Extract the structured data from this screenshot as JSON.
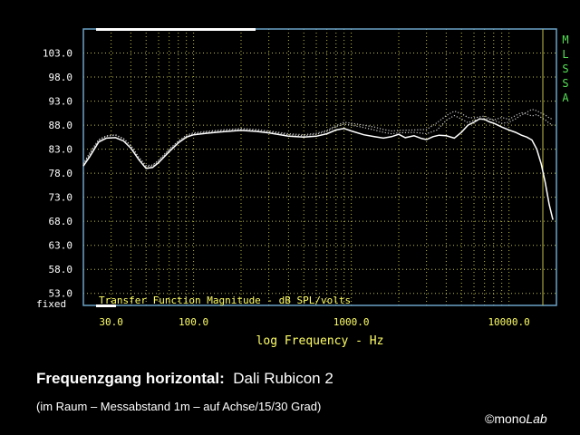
{
  "chart_data": {
    "type": "line",
    "title": "Transfer Function Magnitude - dB SPL/volts",
    "xlabel": "log Frequency - Hz",
    "ylabel": "",
    "x_scale": "log",
    "xlim": [
      20,
      20000
    ],
    "ylim": [
      50.5,
      108
    ],
    "y_ticks": [
      "103.0",
      "98.0",
      "93.0",
      "88.0",
      "83.0",
      "78.0",
      "73.0",
      "68.0",
      "63.0",
      "58.0",
      "53.0"
    ],
    "y_ticks_values": [
      103,
      98,
      93,
      88,
      83,
      78,
      73,
      68,
      63,
      58,
      53
    ],
    "y_bottom_label": "fixed",
    "x_ticks": [
      "30.0",
      "100.0",
      "1000.0",
      "10000.0"
    ],
    "x_ticks_values": [
      30,
      100,
      1000,
      10000
    ],
    "grid": true,
    "side_label": "MLSSA",
    "series": [
      {
        "color": "#ffffff",
        "style": "solid",
        "points": [
          [
            20,
            79.5
          ],
          [
            22,
            81.5
          ],
          [
            25,
            84.5
          ],
          [
            28,
            85.3
          ],
          [
            32,
            85.4
          ],
          [
            36,
            84.7
          ],
          [
            40,
            83.2
          ],
          [
            45,
            80.8
          ],
          [
            50,
            79.0
          ],
          [
            55,
            79.2
          ],
          [
            60,
            80.2
          ],
          [
            70,
            82.5
          ],
          [
            80,
            84.3
          ],
          [
            90,
            85.5
          ],
          [
            100,
            86.0
          ],
          [
            120,
            86.3
          ],
          [
            150,
            86.6
          ],
          [
            200,
            86.9
          ],
          [
            250,
            86.7
          ],
          [
            300,
            86.4
          ],
          [
            400,
            85.7
          ],
          [
            500,
            85.5
          ],
          [
            600,
            85.7
          ],
          [
            700,
            86.2
          ],
          [
            800,
            87.0
          ],
          [
            900,
            87.3
          ],
          [
            1000,
            86.8
          ],
          [
            1200,
            86.0
          ],
          [
            1400,
            85.6
          ],
          [
            1600,
            85.3
          ],
          [
            1800,
            85.6
          ],
          [
            2000,
            86.1
          ],
          [
            2200,
            85.4
          ],
          [
            2500,
            85.8
          ],
          [
            2800,
            85.2
          ],
          [
            3000,
            85.0
          ],
          [
            3300,
            85.6
          ],
          [
            3600,
            85.9
          ],
          [
            4000,
            85.8
          ],
          [
            4500,
            85.3
          ],
          [
            5000,
            86.5
          ],
          [
            5500,
            88.0
          ],
          [
            6000,
            88.6
          ],
          [
            6500,
            89.3
          ],
          [
            7000,
            89.2
          ],
          [
            7500,
            88.7
          ],
          [
            8000,
            88.4
          ],
          [
            8500,
            88.0
          ],
          [
            9000,
            87.6
          ],
          [
            10000,
            87.0
          ],
          [
            11000,
            86.5
          ],
          [
            12000,
            85.9
          ],
          [
            13000,
            85.5
          ],
          [
            14000,
            84.9
          ],
          [
            15000,
            83.0
          ],
          [
            16000,
            80.0
          ],
          [
            17000,
            76.0
          ],
          [
            18000,
            71.5
          ],
          [
            19000,
            68.3
          ]
        ]
      },
      {
        "color": "#c8c8c8",
        "style": "dotted",
        "points": [
          [
            20,
            79.8
          ],
          [
            22,
            82.0
          ],
          [
            25,
            84.8
          ],
          [
            28,
            85.7
          ],
          [
            32,
            85.9
          ],
          [
            36,
            85.1
          ],
          [
            40,
            83.7
          ],
          [
            45,
            81.2
          ],
          [
            50,
            79.4
          ],
          [
            55,
            79.5
          ],
          [
            60,
            80.5
          ],
          [
            70,
            82.8
          ],
          [
            80,
            84.5
          ],
          [
            90,
            85.7
          ],
          [
            100,
            86.2
          ],
          [
            120,
            86.5
          ],
          [
            150,
            86.8
          ],
          [
            200,
            87.1
          ],
          [
            250,
            86.9
          ],
          [
            300,
            86.6
          ],
          [
            400,
            86.0
          ],
          [
            500,
            85.8
          ],
          [
            600,
            86.1
          ],
          [
            700,
            86.7
          ],
          [
            800,
            87.7
          ],
          [
            900,
            88.2
          ],
          [
            1000,
            88.0
          ],
          [
            1200,
            87.5
          ],
          [
            1400,
            87.0
          ],
          [
            1600,
            86.5
          ],
          [
            1800,
            86.2
          ],
          [
            2000,
            86.4
          ],
          [
            2500,
            86.5
          ],
          [
            3000,
            86.2
          ],
          [
            3500,
            87.0
          ],
          [
            4000,
            89.0
          ],
          [
            4500,
            90.0
          ],
          [
            5000,
            89.3
          ],
          [
            5500,
            88.5
          ],
          [
            6000,
            89.0
          ],
          [
            7000,
            89.4
          ],
          [
            8000,
            89.1
          ],
          [
            9000,
            89.6
          ],
          [
            10000,
            89.2
          ],
          [
            11000,
            90.0
          ],
          [
            12000,
            90.6
          ],
          [
            13000,
            90.3
          ],
          [
            14000,
            89.9
          ],
          [
            15000,
            90.2
          ],
          [
            16000,
            89.6
          ],
          [
            17000,
            89.1
          ],
          [
            18000,
            88.4
          ],
          [
            19000,
            88.0
          ]
        ]
      },
      {
        "color": "#c8c8c8",
        "style": "dotted",
        "points": [
          [
            20,
            80.0
          ],
          [
            22,
            82.3
          ],
          [
            25,
            85.0
          ],
          [
            28,
            85.8
          ],
          [
            32,
            86.0
          ],
          [
            36,
            85.2
          ],
          [
            40,
            83.8
          ],
          [
            45,
            81.3
          ],
          [
            50,
            79.6
          ],
          [
            55,
            79.7
          ],
          [
            60,
            80.7
          ],
          [
            70,
            83.0
          ],
          [
            80,
            84.7
          ],
          [
            90,
            85.9
          ],
          [
            100,
            86.4
          ],
          [
            120,
            86.7
          ],
          [
            150,
            87.0
          ],
          [
            200,
            87.3
          ],
          [
            250,
            87.1
          ],
          [
            300,
            86.8
          ],
          [
            400,
            86.2
          ],
          [
            500,
            86.0
          ],
          [
            600,
            86.3
          ],
          [
            700,
            86.9
          ],
          [
            800,
            87.9
          ],
          [
            900,
            88.6
          ],
          [
            1000,
            88.4
          ],
          [
            1200,
            88.0
          ],
          [
            1400,
            87.6
          ],
          [
            1600,
            87.1
          ],
          [
            1800,
            86.8
          ],
          [
            2000,
            86.9
          ],
          [
            2500,
            87.0
          ],
          [
            3000,
            87.1
          ],
          [
            3500,
            88.5
          ],
          [
            4000,
            90.0
          ],
          [
            4500,
            90.9
          ],
          [
            5000,
            90.4
          ],
          [
            5500,
            89.6
          ],
          [
            6000,
            89.5
          ],
          [
            7000,
            89.9
          ],
          [
            8000,
            89.0
          ],
          [
            9000,
            88.4
          ],
          [
            10000,
            88.6
          ],
          [
            11000,
            89.3
          ],
          [
            12000,
            90.1
          ],
          [
            13000,
            90.7
          ],
          [
            14000,
            91.3
          ],
          [
            15000,
            91.0
          ],
          [
            16000,
            90.5
          ],
          [
            17000,
            90.1
          ],
          [
            18000,
            89.5
          ],
          [
            19000,
            89.2
          ]
        ]
      }
    ]
  },
  "caption": {
    "title_bold": "Frequenzgang horizontal:",
    "title_rest": "Dali Rubicon 2",
    "subtitle": "(im Raum – Messabstand 1m – auf Achse/15/30 Grad)"
  },
  "copyright": {
    "symbol": "©",
    "brand_normal": "mono",
    "brand_italic": "Lab"
  },
  "colors": {
    "frame": "#6aa3c8",
    "grid": "#bfbf4a",
    "y_tick_text": "#ffffff",
    "x_tick_text": "#ffff66",
    "side_label": "#55e055",
    "background": "#000000"
  }
}
